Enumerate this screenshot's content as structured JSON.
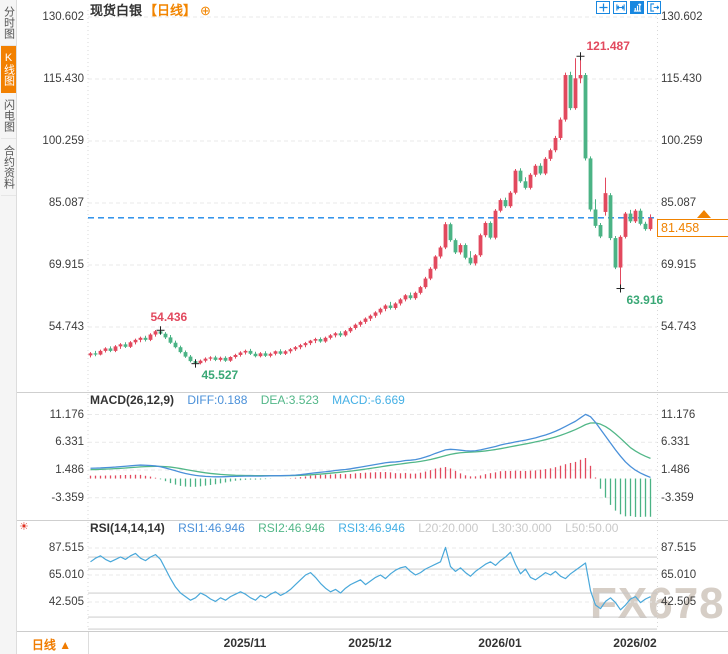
{
  "window": {
    "watermark": "FX678"
  },
  "colors": {
    "up": "#e2495e",
    "down": "#4bb385",
    "diff": "#4a90d9",
    "dea": "#52b788",
    "macd_value": "#45b0e5",
    "rsi_line": "#49a8da",
    "dim": "#c9c9c9",
    "accent": "#f07c00",
    "orange_bright": "#f28500",
    "price_line": "#1a86e8",
    "icon_blue": "#1787e0",
    "annotation_red": "#e2495e",
    "annotation_green": "#3aa876",
    "grid": "#e9e9e9",
    "level_line": "#c4c4c4",
    "marker": "#222222"
  },
  "sidebar": {
    "items": [
      {
        "label": "分时图",
        "active": false
      },
      {
        "label": "K线图",
        "active": true
      },
      {
        "label": "闪电图",
        "active": false
      },
      {
        "label": "合约资料",
        "active": false
      }
    ]
  },
  "header": {
    "symbol": "现货白银",
    "period_tag": "【日线】",
    "add_icon": "⊕",
    "toolbar_icons": [
      "crosshair",
      "scale-x",
      "scale-y",
      "exit"
    ]
  },
  "price_panel": {
    "last_price_label": "81.458",
    "settings_icon": "☀"
  },
  "macd_header": {
    "label": "MACD(26,12,9)",
    "diff": "DIFF:0.188",
    "dea": "DEA:3.523",
    "macd": "MACD:-6.669"
  },
  "rsi_header": {
    "label": "RSI(14,14,14)",
    "r1": "RSI1:46.946",
    "r2": "RSI2:46.946",
    "r3": "RSI3:46.946",
    "l20": "L20:20.000",
    "l30": "L30:30.000",
    "l50": "L50:50.00"
  },
  "xaxis": {
    "period_label": "日线 ▲",
    "labels": [
      "2025/11",
      "2025/12",
      "2026/01",
      "2026/02"
    ],
    "positions": [
      245,
      370,
      500,
      635
    ]
  },
  "chart_data": {
    "type": "candlestick",
    "symbol": "现货白银",
    "period": "日线",
    "last_price": 81.458,
    "annotations": [
      {
        "text": "121.487",
        "index": 98,
        "value": 121.487,
        "color": "up",
        "placement": "above-right"
      },
      {
        "text": "54.436",
        "index": 14,
        "value": 54.436,
        "color": "up",
        "placement": "above-left"
      },
      {
        "text": "45.527",
        "index": 21,
        "value": 45.527,
        "color": "down",
        "placement": "below-right"
      },
      {
        "text": "63.916",
        "index": 106,
        "value": 63.916,
        "color": "down",
        "placement": "below-right"
      }
    ],
    "main": {
      "axis": [
        "130.602",
        "115.430",
        "100.259",
        "85.087",
        "69.915",
        "54.743"
      ],
      "candles": [
        [
          47.8,
          48.6,
          47.3,
          48.3
        ],
        [
          48.3,
          48.9,
          47.6,
          48.0
        ],
        [
          48.0,
          49.2,
          47.8,
          48.9
        ],
        [
          48.9,
          49.8,
          48.5,
          49.5
        ],
        [
          49.5,
          50.0,
          48.6,
          48.9
        ],
        [
          48.9,
          50.3,
          48.6,
          50.0
        ],
        [
          50.0,
          50.8,
          49.4,
          50.5
        ],
        [
          50.5,
          51.0,
          49.6,
          49.9
        ],
        [
          49.9,
          51.3,
          49.6,
          51.0
        ],
        [
          51.0,
          51.9,
          50.5,
          51.6
        ],
        [
          51.6,
          52.4,
          51.0,
          52.1
        ],
        [
          52.1,
          52.6,
          51.2,
          51.6
        ],
        [
          51.6,
          53.2,
          51.3,
          52.9
        ],
        [
          52.9,
          54.0,
          52.4,
          53.7
        ],
        [
          53.7,
          54.436,
          52.8,
          53.1
        ],
        [
          53.1,
          53.5,
          51.8,
          52.2
        ],
        [
          52.2,
          52.8,
          50.6,
          50.9
        ],
        [
          50.9,
          51.4,
          49.5,
          49.8
        ],
        [
          49.8,
          50.2,
          48.3,
          48.6
        ],
        [
          48.6,
          49.0,
          47.2,
          47.5
        ],
        [
          47.5,
          47.9,
          46.1,
          46.4
        ],
        [
          46.4,
          46.9,
          45.527,
          45.9
        ],
        [
          45.9,
          46.8,
          45.6,
          46.5
        ],
        [
          46.5,
          47.3,
          46.1,
          47.0
        ],
        [
          47.0,
          47.6,
          46.5,
          47.3
        ],
        [
          47.3,
          47.7,
          46.4,
          46.7
        ],
        [
          46.7,
          47.5,
          46.3,
          47.2
        ],
        [
          47.2,
          47.6,
          46.2,
          46.5
        ],
        [
          46.5,
          47.6,
          46.2,
          47.4
        ],
        [
          47.4,
          48.2,
          47.0,
          47.9
        ],
        [
          47.9,
          48.8,
          47.5,
          48.5
        ],
        [
          48.5,
          49.2,
          48.0,
          48.9
        ],
        [
          48.9,
          49.4,
          47.9,
          48.2
        ],
        [
          48.2,
          48.7,
          47.3,
          47.6
        ],
        [
          47.6,
          48.6,
          47.3,
          48.3
        ],
        [
          48.3,
          48.8,
          47.4,
          47.7
        ],
        [
          47.7,
          48.5,
          47.3,
          48.2
        ],
        [
          48.2,
          49.0,
          47.8,
          48.8
        ],
        [
          48.8,
          49.3,
          47.9,
          48.2
        ],
        [
          48.2,
          49.1,
          47.9,
          48.8
        ],
        [
          48.8,
          49.6,
          48.3,
          49.3
        ],
        [
          49.3,
          50.1,
          48.9,
          49.8
        ],
        [
          49.8,
          50.6,
          49.3,
          50.3
        ],
        [
          50.3,
          51.1,
          49.8,
          50.8
        ],
        [
          50.8,
          51.6,
          50.3,
          51.4
        ],
        [
          51.4,
          52.1,
          50.8,
          51.8
        ],
        [
          51.8,
          52.2,
          50.9,
          51.2
        ],
        [
          51.2,
          52.4,
          50.9,
          52.1
        ],
        [
          52.1,
          53.0,
          51.7,
          52.7
        ],
        [
          52.7,
          53.5,
          52.2,
          53.2
        ],
        [
          53.2,
          53.7,
          52.3,
          52.7
        ],
        [
          52.7,
          54.0,
          52.4,
          53.7
        ],
        [
          53.7,
          54.8,
          53.3,
          54.5
        ],
        [
          54.5,
          55.6,
          54.1,
          55.3
        ],
        [
          55.3,
          56.3,
          54.8,
          56.0
        ],
        [
          56.0,
          57.1,
          55.5,
          56.8
        ],
        [
          56.8,
          57.8,
          56.2,
          57.5
        ],
        [
          57.5,
          58.6,
          57.0,
          58.3
        ],
        [
          58.3,
          59.5,
          57.8,
          59.2
        ],
        [
          59.2,
          60.3,
          58.6,
          60.0
        ],
        [
          60.0,
          60.9,
          59.0,
          59.4
        ],
        [
          59.4,
          60.8,
          59.0,
          60.5
        ],
        [
          60.5,
          61.8,
          60.0,
          61.5
        ],
        [
          61.5,
          62.8,
          61.0,
          62.5
        ],
        [
          62.5,
          63.2,
          61.4,
          61.8
        ],
        [
          61.8,
          63.4,
          61.4,
          63.1
        ],
        [
          63.1,
          64.8,
          62.7,
          64.5
        ],
        [
          64.5,
          67.0,
          64.1,
          66.6
        ],
        [
          66.6,
          69.4,
          66.2,
          69.0
        ],
        [
          69.0,
          72.3,
          68.6,
          72.0
        ],
        [
          72.0,
          74.6,
          71.5,
          74.2
        ],
        [
          74.2,
          80.4,
          73.8,
          79.9
        ],
        [
          79.9,
          80.3,
          75.6,
          76.0
        ],
        [
          76.0,
          76.4,
          72.6,
          73.0
        ],
        [
          73.0,
          75.2,
          72.5,
          74.8
        ],
        [
          74.8,
          75.2,
          71.3,
          71.7
        ],
        [
          71.7,
          73.3,
          69.9,
          70.3
        ],
        [
          70.3,
          72.6,
          69.8,
          72.3
        ],
        [
          72.3,
          77.6,
          71.9,
          77.2
        ],
        [
          77.2,
          80.6,
          76.7,
          80.2
        ],
        [
          80.2,
          80.6,
          76.2,
          76.6
        ],
        [
          76.6,
          83.6,
          76.2,
          83.2
        ],
        [
          83.2,
          86.2,
          82.8,
          85.8
        ],
        [
          85.8,
          86.4,
          83.9,
          84.3
        ],
        [
          84.3,
          88.0,
          83.9,
          87.6
        ],
        [
          87.6,
          93.4,
          87.2,
          93.0
        ],
        [
          93.0,
          93.6,
          90.0,
          90.4
        ],
        [
          90.4,
          91.4,
          88.4,
          88.8
        ],
        [
          88.8,
          92.4,
          88.4,
          92.0
        ],
        [
          92.0,
          94.6,
          91.5,
          94.2
        ],
        [
          94.2,
          94.8,
          91.9,
          92.3
        ],
        [
          92.3,
          96.3,
          91.9,
          95.9
        ],
        [
          95.9,
          98.4,
          95.4,
          98.0
        ],
        [
          98.0,
          101.5,
          97.5,
          101.0
        ],
        [
          101.0,
          106.0,
          100.5,
          105.5
        ],
        [
          105.5,
          117.0,
          105.0,
          116.4
        ],
        [
          116.4,
          117.2,
          107.8,
          108.3
        ],
        [
          108.3,
          120.5,
          107.9,
          115.6
        ],
        [
          115.6,
          121.487,
          114.4,
          116.4
        ],
        [
          116.4,
          116.9,
          95.5,
          96.0
        ],
        [
          96.0,
          96.5,
          83.0,
          83.5
        ],
        [
          83.5,
          86.0,
          79.0,
          79.5
        ],
        [
          79.7,
          80.2,
          76.5,
          76.9
        ],
        [
          82.9,
          91.3,
          82.0,
          87.5
        ],
        [
          87.0,
          87.5,
          76.0,
          76.5
        ],
        [
          76.5,
          77.0,
          68.9,
          69.3
        ],
        [
          69.3,
          77.2,
          63.916,
          76.8
        ],
        [
          76.8,
          82.9,
          76.4,
          82.5
        ],
        [
          82.5,
          83.4,
          80.2,
          80.6
        ],
        [
          80.6,
          83.6,
          80.2,
          83.2
        ],
        [
          83.2,
          83.7,
          79.6,
          80.0
        ],
        [
          80.0,
          80.5,
          78.3,
          78.7
        ],
        [
          78.7,
          82.3,
          78.3,
          81.458
        ]
      ]
    },
    "macd": {
      "axis": [
        "11.176",
        "6.331",
        "1.486",
        "-3.359"
      ],
      "diff": [
        1.8,
        1.82,
        1.85,
        1.9,
        1.95,
        2.0,
        2.08,
        2.15,
        2.22,
        2.3,
        2.35,
        2.32,
        2.28,
        2.2,
        2.05,
        1.85,
        1.6,
        1.35,
        1.1,
        0.88,
        0.7,
        0.55,
        0.45,
        0.38,
        0.33,
        0.3,
        0.3,
        0.32,
        0.35,
        0.38,
        0.4,
        0.42,
        0.43,
        0.42,
        0.42,
        0.45,
        0.48,
        0.5,
        0.5,
        0.52,
        0.55,
        0.6,
        0.68,
        0.78,
        0.9,
        1.0,
        1.1,
        1.18,
        1.28,
        1.4,
        1.5,
        1.58,
        1.7,
        1.85,
        2.0,
        2.15,
        2.3,
        2.45,
        2.6,
        2.75,
        2.85,
        2.9,
        3.0,
        3.15,
        3.2,
        3.3,
        3.5,
        3.75,
        4.05,
        4.4,
        4.7,
        5.0,
        5.1,
        5.05,
        4.95,
        4.85,
        4.8,
        4.85,
        5.0,
        5.2,
        5.4,
        5.6,
        5.85,
        6.05,
        6.2,
        6.4,
        6.55,
        6.7,
        6.9,
        7.1,
        7.35,
        7.6,
        7.9,
        8.25,
        8.65,
        9.1,
        9.55,
        10.0,
        10.6,
        11.2,
        10.8,
        9.8,
        8.6,
        7.4,
        6.2,
        5.0,
        3.9,
        2.9,
        2.1,
        1.45,
        0.95,
        0.55,
        0.188
      ],
      "dea": [
        1.55,
        1.57,
        1.6,
        1.64,
        1.68,
        1.73,
        1.78,
        1.84,
        1.9,
        1.97,
        2.03,
        2.08,
        2.11,
        2.13,
        2.12,
        2.08,
        2.0,
        1.88,
        1.74,
        1.58,
        1.42,
        1.27,
        1.13,
        1.0,
        0.89,
        0.8,
        0.72,
        0.66,
        0.61,
        0.57,
        0.55,
        0.53,
        0.52,
        0.51,
        0.5,
        0.5,
        0.5,
        0.5,
        0.5,
        0.51,
        0.52,
        0.53,
        0.56,
        0.6,
        0.65,
        0.71,
        0.78,
        0.85,
        0.93,
        1.02,
        1.11,
        1.2,
        1.3,
        1.4,
        1.52,
        1.64,
        1.77,
        1.9,
        2.04,
        2.18,
        2.31,
        2.43,
        2.54,
        2.66,
        2.77,
        2.87,
        2.99,
        3.14,
        3.32,
        3.53,
        3.76,
        4.0,
        4.22,
        4.38,
        4.5,
        4.57,
        4.61,
        4.66,
        4.73,
        4.82,
        4.93,
        5.06,
        5.21,
        5.38,
        5.54,
        5.71,
        5.88,
        6.04,
        6.21,
        6.39,
        6.58,
        6.78,
        7.01,
        7.26,
        7.53,
        7.85,
        8.19,
        8.55,
        8.96,
        9.41,
        9.69,
        9.71,
        9.49,
        9.07,
        8.5,
        7.8,
        7.02,
        6.2,
        5.38,
        4.8,
        4.3,
        3.88,
        3.523
      ]
    },
    "rsi": {
      "axis": [
        "87.515",
        "65.010",
        "42.505"
      ],
      "levels": [
        80,
        70,
        50,
        30,
        20
      ],
      "values": [
        76,
        79,
        81,
        78,
        76,
        78,
        80,
        78,
        81,
        83,
        79,
        77,
        80,
        82,
        78,
        70,
        62,
        55,
        50,
        47,
        44,
        46,
        50,
        48,
        45,
        43,
        46,
        44,
        47,
        49,
        51,
        49,
        46,
        44,
        48,
        46,
        49,
        51,
        48,
        50,
        53,
        57,
        61,
        65,
        67,
        63,
        58,
        54,
        51,
        53,
        50,
        54,
        57,
        59,
        61,
        57,
        60,
        63,
        65,
        62,
        66,
        69,
        71,
        72,
        68,
        65,
        67,
        70,
        72,
        74,
        76,
        88,
        72,
        68,
        71,
        67,
        64,
        68,
        71,
        74,
        76,
        73,
        77,
        80,
        84,
        74,
        66,
        70,
        63,
        61,
        64,
        67,
        65,
        68,
        64,
        62,
        66,
        69,
        72,
        75,
        52,
        40,
        37,
        43,
        46,
        42,
        36,
        40,
        45,
        47,
        42,
        45,
        46.946
      ]
    }
  }
}
